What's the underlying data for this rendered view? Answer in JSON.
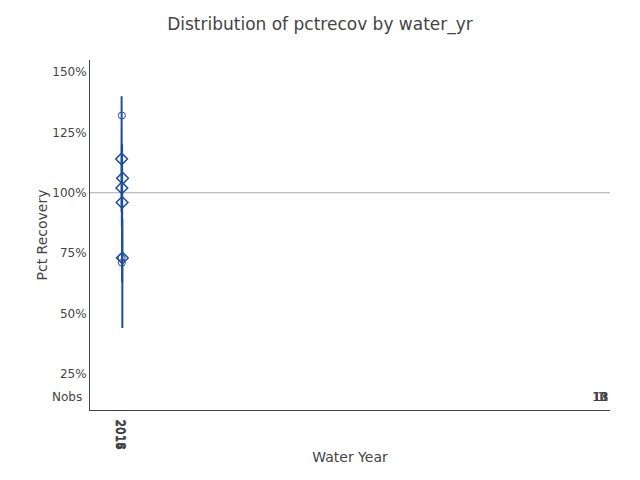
{
  "chart_data": {
    "type": "box",
    "title": "Distribution of pctrecov by water_yr",
    "xlabel": "Water Year",
    "ylabel": "Pct Recovery",
    "categories": [
      "2014",
      "2015",
      "2016",
      "2017",
      "2018"
    ],
    "boxes": [
      {
        "q1": 108,
        "median": 120,
        "q3": 126,
        "mean": 114,
        "whislo": 92,
        "whishi": 140,
        "fliers": [
          73
        ]
      },
      {
        "q1": 96,
        "median": 104,
        "q3": 108,
        "mean": 102,
        "whislo": 86,
        "whishi": 120,
        "fliers": [
          132,
          71
        ]
      },
      {
        "q1": 88,
        "median": 100,
        "q3": 104,
        "mean": 96,
        "whislo": 63,
        "whishi": 120,
        "fliers": []
      },
      {
        "q1": 63,
        "median": 75,
        "q3": 85,
        "mean": 73,
        "whislo": 44,
        "whishi": 89,
        "fliers": []
      },
      {
        "q1": 106,
        "median": 106,
        "q3": 106,
        "mean": 106,
        "whislo": 106,
        "whishi": 106,
        "fliers": []
      }
    ],
    "nobs_label": "Nobs",
    "nobs": [
      10,
      13,
      18,
      11,
      1
    ],
    "color": "#1f4e9a",
    "reference_line": {
      "y": 100,
      "color": "#aaaaaa"
    },
    "ylim": [
      10,
      155
    ],
    "yticks": [
      {
        "value": 25,
        "label": "25%"
      },
      {
        "value": 50,
        "label": "50%"
      },
      {
        "value": 75,
        "label": "75%"
      },
      {
        "value": 100,
        "label": "100%"
      },
      {
        "value": 125,
        "label": "125%"
      },
      {
        "value": 150,
        "label": "150%"
      }
    ],
    "grid": false
  }
}
